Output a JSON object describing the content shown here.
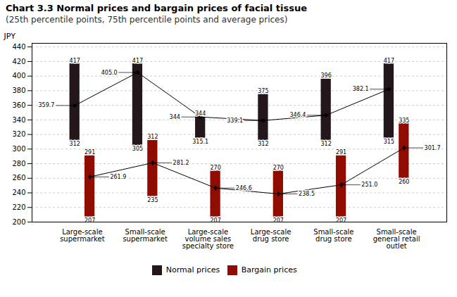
{
  "chart_data": {
    "type": "bar",
    "title": "Chart 3.3 Normal prices and bargain prices of facial tissue",
    "subtitle": "(25th percentile points, 75th percentile points and average prices)",
    "ylabel": "JPY",
    "categories": [
      "Large-scale\nsupermarket",
      "Small-scale\nsupermarket",
      "Large-scale\nvolume sales\nspecialty store",
      "Large-scale\ndrug store",
      "Small-scale\ndrug store",
      "Small-scale\ngeneral retail\noutlet"
    ],
    "series": [
      {
        "name": "Normal prices",
        "low": [
          312,
          305,
          315.1,
          312,
          312,
          315
        ],
        "high": [
          417,
          417,
          344,
          375,
          396,
          417
        ],
        "average": [
          359.7,
          405.0,
          344,
          339.1,
          346.4,
          382.1
        ],
        "average_labels": [
          "359.7",
          "405.0",
          "344",
          "339.1",
          "346.4",
          "382.1"
        ],
        "marker": "circle"
      },
      {
        "name": "Bargain prices",
        "low": [
          207,
          235,
          207,
          207,
          207,
          260
        ],
        "high": [
          291,
          312,
          270,
          270,
          291,
          335
        ],
        "average": [
          261.9,
          281.2,
          246.6,
          238.5,
          251.0,
          301.7
        ],
        "average_labels": [
          "261.9",
          "281.2",
          "246.6",
          "238.5",
          "251.0",
          "301.7"
        ],
        "marker": "diamond"
      }
    ],
    "ylim": [
      200,
      445
    ],
    "yticks": [
      200,
      220,
      240,
      260,
      280,
      300,
      320,
      340,
      360,
      380,
      400,
      420,
      440
    ],
    "grid": true,
    "data_labels": true,
    "legend": "bottom"
  }
}
